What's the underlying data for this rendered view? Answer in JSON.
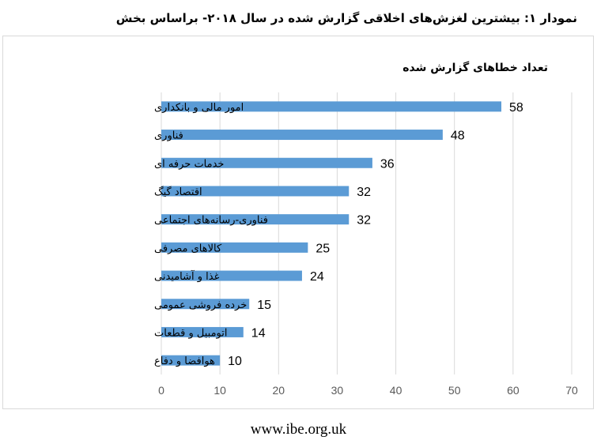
{
  "figure_title": "نمودار ۱: بیشترین لغزش‌های اخلاقی گزارش شده در سال ۲۰۱۸- براساس بخش",
  "footer": "www.ibe.org.uk",
  "colors": {
    "bar": "#5b9bd5",
    "gridline": "#d9d9d9",
    "text": "#000000",
    "tick_text": "#595959"
  },
  "chart_data": {
    "type": "bar",
    "orientation": "horizontal",
    "title": "تعداد خطاهای گزارش شده",
    "categories": [
      "امور مالی و بانکداری",
      "فناوری",
      "خدمات حرفه ای",
      "اقتصاد گیگ",
      "فناوری-رسانه‌های اجتماعی",
      "کالاهای مصرفی",
      "غذا و آشامیدنی",
      "خرده فروشی عمومی",
      "اتومبیل و قطعات",
      "هوافضا و دفاع"
    ],
    "values": [
      58,
      48,
      36,
      32,
      32,
      25,
      24,
      15,
      14,
      10
    ],
    "xlim": [
      0,
      70
    ],
    "xticks": [
      0,
      10,
      20,
      30,
      40,
      50,
      60,
      70
    ],
    "grid": true,
    "data_labels": true
  }
}
